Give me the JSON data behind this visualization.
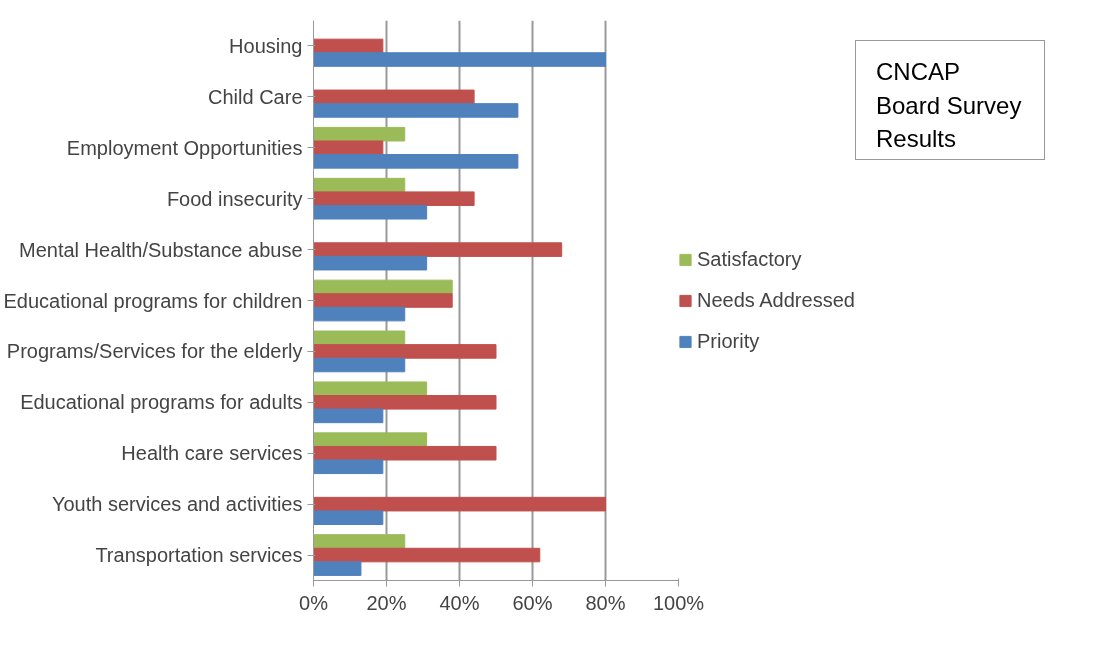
{
  "chart_data": {
    "type": "bar",
    "orientation": "horizontal",
    "title": "CNCAP Board Survey Results",
    "categories": [
      "Housing",
      "Child Care",
      "Employment Opportunities",
      "Food insecurity",
      "Mental Health/Substance abuse",
      "Educational programs for children",
      "Programs/Services for the elderly",
      "Educational programs for adults",
      "Health care services",
      "Youth services and activities",
      "Transportation services"
    ],
    "series": [
      {
        "name": "Satisfactory",
        "color": "#9bbb59",
        "values": [
          0,
          0,
          25,
          25,
          0,
          38,
          25,
          31,
          31,
          0,
          25
        ]
      },
      {
        "name": "Needs Addressed",
        "color": "#c0504d",
        "values": [
          19,
          44,
          19,
          44,
          68,
          38,
          50,
          50,
          50,
          80,
          62
        ]
      },
      {
        "name": "Priority",
        "color": "#4f81bd",
        "values": [
          80,
          56,
          56,
          31,
          31,
          25,
          25,
          19,
          19,
          19,
          13
        ]
      }
    ],
    "xlim": [
      0,
      100
    ],
    "xticks": [
      {
        "value": 0,
        "label": "0%"
      },
      {
        "value": 20,
        "label": "20%"
      },
      {
        "value": 40,
        "label": "40%"
      },
      {
        "value": 60,
        "label": "60%"
      },
      {
        "value": 80,
        "label": "80%"
      },
      {
        "value": 100,
        "label": "100%"
      }
    ],
    "grid": "x",
    "legend": "right"
  }
}
